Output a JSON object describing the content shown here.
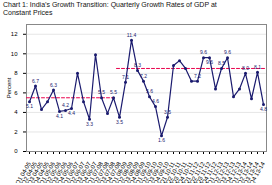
{
  "chart_data": {
    "type": "line",
    "title": "Chart 1: India’s Growth Transition: Quarterly Growth Rates of GDP at\nConstant Prices",
    "ylabel": "Percent",
    "categories": [
      "Q1 04-05",
      "Q2 04-05",
      "Q3 04-05",
      "Q4 04-05",
      "Q1 05-06",
      "Q2 05-06",
      "Q3 05-06",
      "Q4 05-06",
      "Q1 06-07",
      "Q2 06-07",
      "Q3 06-07",
      "Q4 06-07",
      "Q1 07-08",
      "Q2 07-08",
      "Q3 07-08",
      "Q4 07-08",
      "Q1 08-09",
      "Q2 08-09",
      "Q3 08-09",
      "Q4 08-09",
      "Q1 09-10",
      "Q2 09-10",
      "Q3 09-10",
      "Q4 09-10",
      "Q1 10-11",
      "Q2 10-11",
      "Q3 10-11",
      "Q4 10-11",
      "Q1 11-12",
      "Q2 11-12",
      "Q3 11-12",
      "Q4 11-12",
      "Q1 12-13",
      "Q2 12-13",
      "Q3 12-13",
      "Q4 12-13",
      "Q1 13-14",
      "Q2 13-14",
      "Q3 13-14",
      "Q4 13-14"
    ],
    "values": [
      5.1,
      6.7,
      4.3,
      5.1,
      6.3,
      4.1,
      4.2,
      4.4,
      8.0,
      5.1,
      3.3,
      9.9,
      5.5,
      3.9,
      5.5,
      3.5,
      7.1,
      11.4,
      8.3,
      7.2,
      5.6,
      4.6,
      1.6,
      3.5,
      8.8,
      9.3,
      8.5,
      7.2,
      7.2,
      9.6,
      9.6,
      6.4,
      8.5,
      9.6,
      5.6,
      6.4,
      8.0,
      5.4,
      8.1,
      4.8
    ],
    "value_labels": [
      "5.1",
      "6.7",
      null,
      null,
      "6.3",
      "4.1",
      "4.2",
      "4.4",
      null,
      null,
      "3.3",
      null,
      "5.5",
      null,
      "5.5",
      "3.5",
      "7.1",
      "11.4",
      "8.3",
      "7.2",
      "5.6",
      "4.6",
      "1.6",
      "3.5",
      null,
      null,
      null,
      null,
      "7.2",
      "9.6",
      "9.6",
      null,
      "8.5",
      "9.6",
      null,
      null,
      "8.0",
      null,
      "8.1",
      "4.8"
    ],
    "data_labels": true,
    "color": "#1a1a6e",
    "marker": "circle",
    "reference_lines": [
      {
        "y": 5.5,
        "x": [
          -0.5,
          14.5
        ],
        "color": "#e8004c",
        "line_style": "dashed"
      },
      {
        "y": 8.5,
        "x": [
          14.5,
          39.5
        ],
        "color": "#e8004c",
        "line_style": "dashed"
      }
    ],
    "ylim": [
      0,
      13
    ],
    "yticks": [
      0,
      2,
      4,
      6,
      8,
      10,
      12
    ],
    "grid": true
  }
}
